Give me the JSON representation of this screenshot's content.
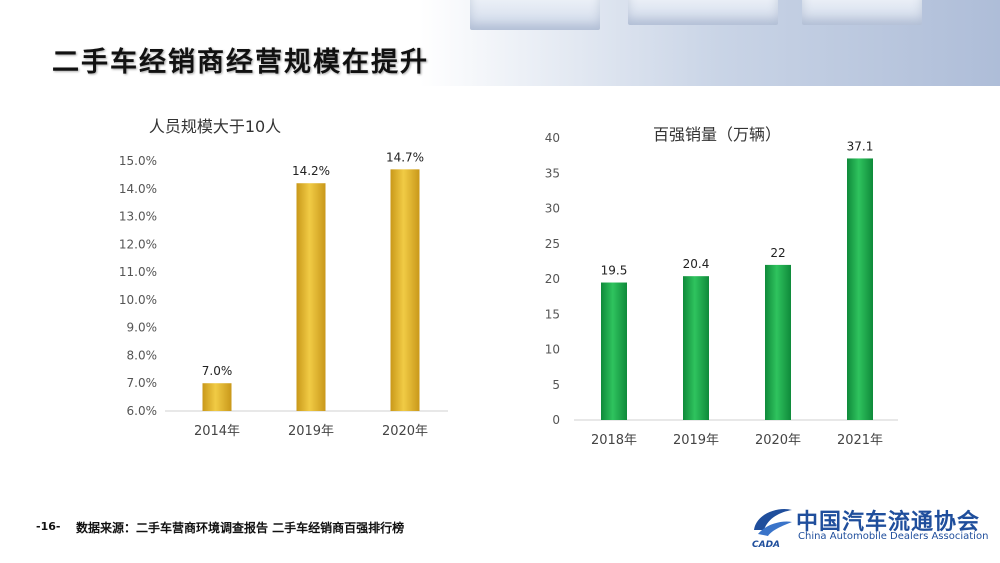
{
  "header": {
    "title": "二手车经销商经营规模在提升"
  },
  "footer": {
    "page": "-16-",
    "source": "数据来源：二手车营商环境调查报告  二手车经销商百强排行榜"
  },
  "logo": {
    "name_cn": "中国汽车流通协会",
    "name_en": "China Automobile Dealers Association",
    "mark_text": "CADA",
    "color": "#1f4e9c"
  },
  "chart_data": [
    {
      "type": "bar",
      "title": "人员规模大于10人",
      "categories": [
        "2014年",
        "2019年",
        "2020年"
      ],
      "values": [
        7.0,
        14.2,
        14.7
      ],
      "value_labels": [
        "7.0%",
        "14.2%",
        "14.7%"
      ],
      "ylim": [
        6.0,
        15.0
      ],
      "yticks": [
        "6.0%",
        "7.0%",
        "8.0%",
        "9.0%",
        "10.0%",
        "11.0%",
        "12.0%",
        "13.0%",
        "14.0%",
        "15.0%"
      ],
      "ytick_values": [
        6,
        7,
        8,
        9,
        10,
        11,
        12,
        13,
        14,
        15
      ],
      "grid": false,
      "color": "#e3b82e"
    },
    {
      "type": "bar",
      "title": "百强销量（万辆）",
      "categories": [
        "2018年",
        "2019年",
        "2020年",
        "2021年"
      ],
      "values": [
        19.5,
        20.4,
        22,
        37.1
      ],
      "value_labels": [
        "19.5",
        "20.4",
        "22",
        "37.1"
      ],
      "ylim": [
        0,
        40
      ],
      "yticks": [
        "0",
        "5",
        "10",
        "15",
        "20",
        "25",
        "30",
        "35",
        "40"
      ],
      "ytick_values": [
        0,
        5,
        10,
        15,
        20,
        25,
        30,
        35,
        40
      ],
      "grid": false,
      "color": "#1aa84a"
    }
  ]
}
